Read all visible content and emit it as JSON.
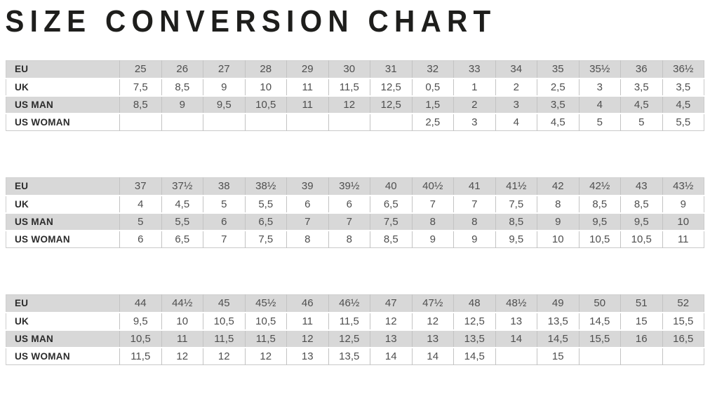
{
  "title": "SIZE CONVERSION CHART",
  "colors": {
    "title_text": "#1e1e1c",
    "label_text": "#2b2b2b",
    "value_text": "#4f4f4f",
    "stripe_gray": "#d8d8d8",
    "stripe_white": "#ffffff",
    "cell_border": "#c3c3c3",
    "page_background": "#ffffff"
  },
  "row_labels": [
    "EU",
    "UK",
    "US MAN",
    "US WOMAN"
  ],
  "chart_data": [
    {
      "type": "table",
      "rows": [
        {
          "label": "EU",
          "values": [
            "25",
            "26",
            "27",
            "28",
            "29",
            "30",
            "31",
            "32",
            "33",
            "34",
            "35",
            "35½",
            "36",
            "36½"
          ]
        },
        {
          "label": "UK",
          "values": [
            "7,5",
            "8,5",
            "9",
            "10",
            "11",
            "11,5",
            "12,5",
            "0,5",
            "1",
            "2",
            "2,5",
            "3",
            "3,5",
            "3,5"
          ]
        },
        {
          "label": "US MAN",
          "values": [
            "8,5",
            "9",
            "9,5",
            "10,5",
            "11",
            "12",
            "12,5",
            "1,5",
            "2",
            "3",
            "3,5",
            "4",
            "4,5",
            "4,5"
          ]
        },
        {
          "label": "US WOMAN",
          "values": [
            "",
            "",
            "",
            "",
            "",
            "",
            "",
            "2,5",
            "3",
            "4",
            "4,5",
            "5",
            "5",
            "5,5"
          ]
        }
      ]
    },
    {
      "type": "table",
      "rows": [
        {
          "label": "EU",
          "values": [
            "37",
            "37½",
            "38",
            "38½",
            "39",
            "39½",
            "40",
            "40½",
            "41",
            "41½",
            "42",
            "42½",
            "43",
            "43½"
          ]
        },
        {
          "label": "UK",
          "values": [
            "4",
            "4,5",
            "5",
            "5,5",
            "6",
            "6",
            "6,5",
            "7",
            "7",
            "7,5",
            "8",
            "8,5",
            "8,5",
            "9"
          ]
        },
        {
          "label": "US MAN",
          "values": [
            "5",
            "5,5",
            "6",
            "6,5",
            "7",
            "7",
            "7,5",
            "8",
            "8",
            "8,5",
            "9",
            "9,5",
            "9,5",
            "10"
          ]
        },
        {
          "label": "US WOMAN",
          "values": [
            "6",
            "6,5",
            "7",
            "7,5",
            "8",
            "8",
            "8,5",
            "9",
            "9",
            "9,5",
            "10",
            "10,5",
            "10,5",
            "11"
          ]
        }
      ]
    },
    {
      "type": "table",
      "rows": [
        {
          "label": "EU",
          "values": [
            "44",
            "44½",
            "45",
            "45½",
            "46",
            "46½",
            "47",
            "47½",
            "48",
            "48½",
            "49",
            "50",
            "51",
            "52"
          ]
        },
        {
          "label": "UK",
          "values": [
            "9,5",
            "10",
            "10,5",
            "10,5",
            "11",
            "11,5",
            "12",
            "12",
            "12,5",
            "13",
            "13,5",
            "14,5",
            "15",
            "15,5"
          ]
        },
        {
          "label": "US MAN",
          "values": [
            "10,5",
            "11",
            "11,5",
            "11,5",
            "12",
            "12,5",
            "13",
            "13",
            "13,5",
            "14",
            "14,5",
            "15,5",
            "16",
            "16,5"
          ]
        },
        {
          "label": "US WOMAN",
          "values": [
            "11,5",
            "12",
            "12",
            "12",
            "13",
            "13,5",
            "14",
            "14",
            "14,5",
            "",
            "15",
            "",
            "",
            ""
          ]
        }
      ]
    }
  ]
}
